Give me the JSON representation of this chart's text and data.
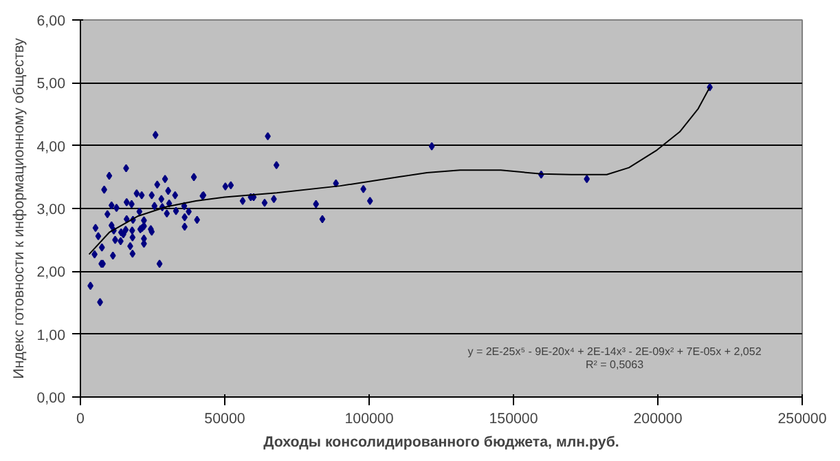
{
  "chart_data": {
    "type": "scatter",
    "xlabel": "Доходы консолидированного бюджета, млн.руб.",
    "ylabel": "Индекс готовности к информационному обществу",
    "xlim": [
      0,
      250000
    ],
    "xticks": [
      0,
      50000,
      100000,
      150000,
      200000,
      250000
    ],
    "ylim": [
      0,
      6
    ],
    "yticks": [
      {
        "value": 0,
        "label": "0,00"
      },
      {
        "value": 1,
        "label": "1,00"
      },
      {
        "value": 2,
        "label": "2,00"
      },
      {
        "value": 3,
        "label": "3,00"
      },
      {
        "value": 4,
        "label": "4,00"
      },
      {
        "value": 5,
        "label": "5,00"
      },
      {
        "value": 6,
        "label": "6,00"
      }
    ],
    "grid": "y",
    "annotations": [
      "y = 2E-25x⁵ - 9E-20x⁴ + 2E-14x³ - 2E-09x² + 7E-05x + 2,052",
      "R² = 0,5063"
    ],
    "series": [
      {
        "marker": "diamond",
        "color": "#000080",
        "x": [
          3470,
          6800,
          4900,
          7270,
          7750,
          5230,
          6180,
          7450,
          8230,
          9350,
          9980,
          10780,
          10780,
          11260,
          11550,
          12030,
          12500,
          13930,
          14100,
          14880,
          15830,
          16010,
          16010,
          15680,
          17250,
          17730,
          17920,
          18050,
          18050,
          18200,
          19480,
          20430,
          20760,
          21230,
          21380,
          22000,
          22000,
          22000,
          22000,
          24380,
          24700,
          24700,
          25650,
          26000,
          26600,
          27400,
          28040,
          28360,
          29310,
          29930,
          30400,
          30740,
          32800,
          33100,
          35950,
          36100,
          36100,
          37520,
          39300,
          40400,
          42300,
          42600,
          50200,
          52100,
          56200,
          59000,
          60000,
          63800,
          64900,
          67000,
          67900,
          81600,
          83800,
          88500,
          98000,
          100300,
          121700,
          159600,
          175400,
          218000
        ],
        "values": [
          1.77,
          1.51,
          2.27,
          2.12,
          2.12,
          2.69,
          2.56,
          2.38,
          3.3,
          2.91,
          3.52,
          3.05,
          2.73,
          2.25,
          2.65,
          2.5,
          3.01,
          2.48,
          2.62,
          2.59,
          3.64,
          3.1,
          2.83,
          2.66,
          2.4,
          3.07,
          2.65,
          2.54,
          2.28,
          2.82,
          3.24,
          2.95,
          2.67,
          3.21,
          2.69,
          2.81,
          2.72,
          2.52,
          2.44,
          2.67,
          2.63,
          3.21,
          3.04,
          4.17,
          3.38,
          2.12,
          3.15,
          3.02,
          3.47,
          2.92,
          3.28,
          3.08,
          3.21,
          2.96,
          3.04,
          2.86,
          2.71,
          2.95,
          3.5,
          2.82,
          3.2,
          3.21,
          3.35,
          3.37,
          3.12,
          3.18,
          3.18,
          3.09,
          4.15,
          3.15,
          3.69,
          3.07,
          2.83,
          3.4,
          3.31,
          3.12,
          3.99,
          3.54,
          3.47,
          4.93
        ]
      },
      {
        "type": "line",
        "marker": "none",
        "color": "#000000",
        "x": [
          3000,
          10000,
          20000,
          30000,
          40000,
          50000,
          68000,
          90000,
          110000,
          120000,
          131500,
          145600,
          159700,
          170000,
          182300,
          190000,
          199700,
          207600,
          214000,
          218000
        ],
        "values": [
          2.27,
          2.62,
          2.88,
          3.03,
          3.12,
          3.18,
          3.25,
          3.36,
          3.5,
          3.57,
          3.61,
          3.61,
          3.55,
          3.54,
          3.54,
          3.65,
          3.93,
          4.22,
          4.59,
          4.93
        ]
      }
    ]
  }
}
